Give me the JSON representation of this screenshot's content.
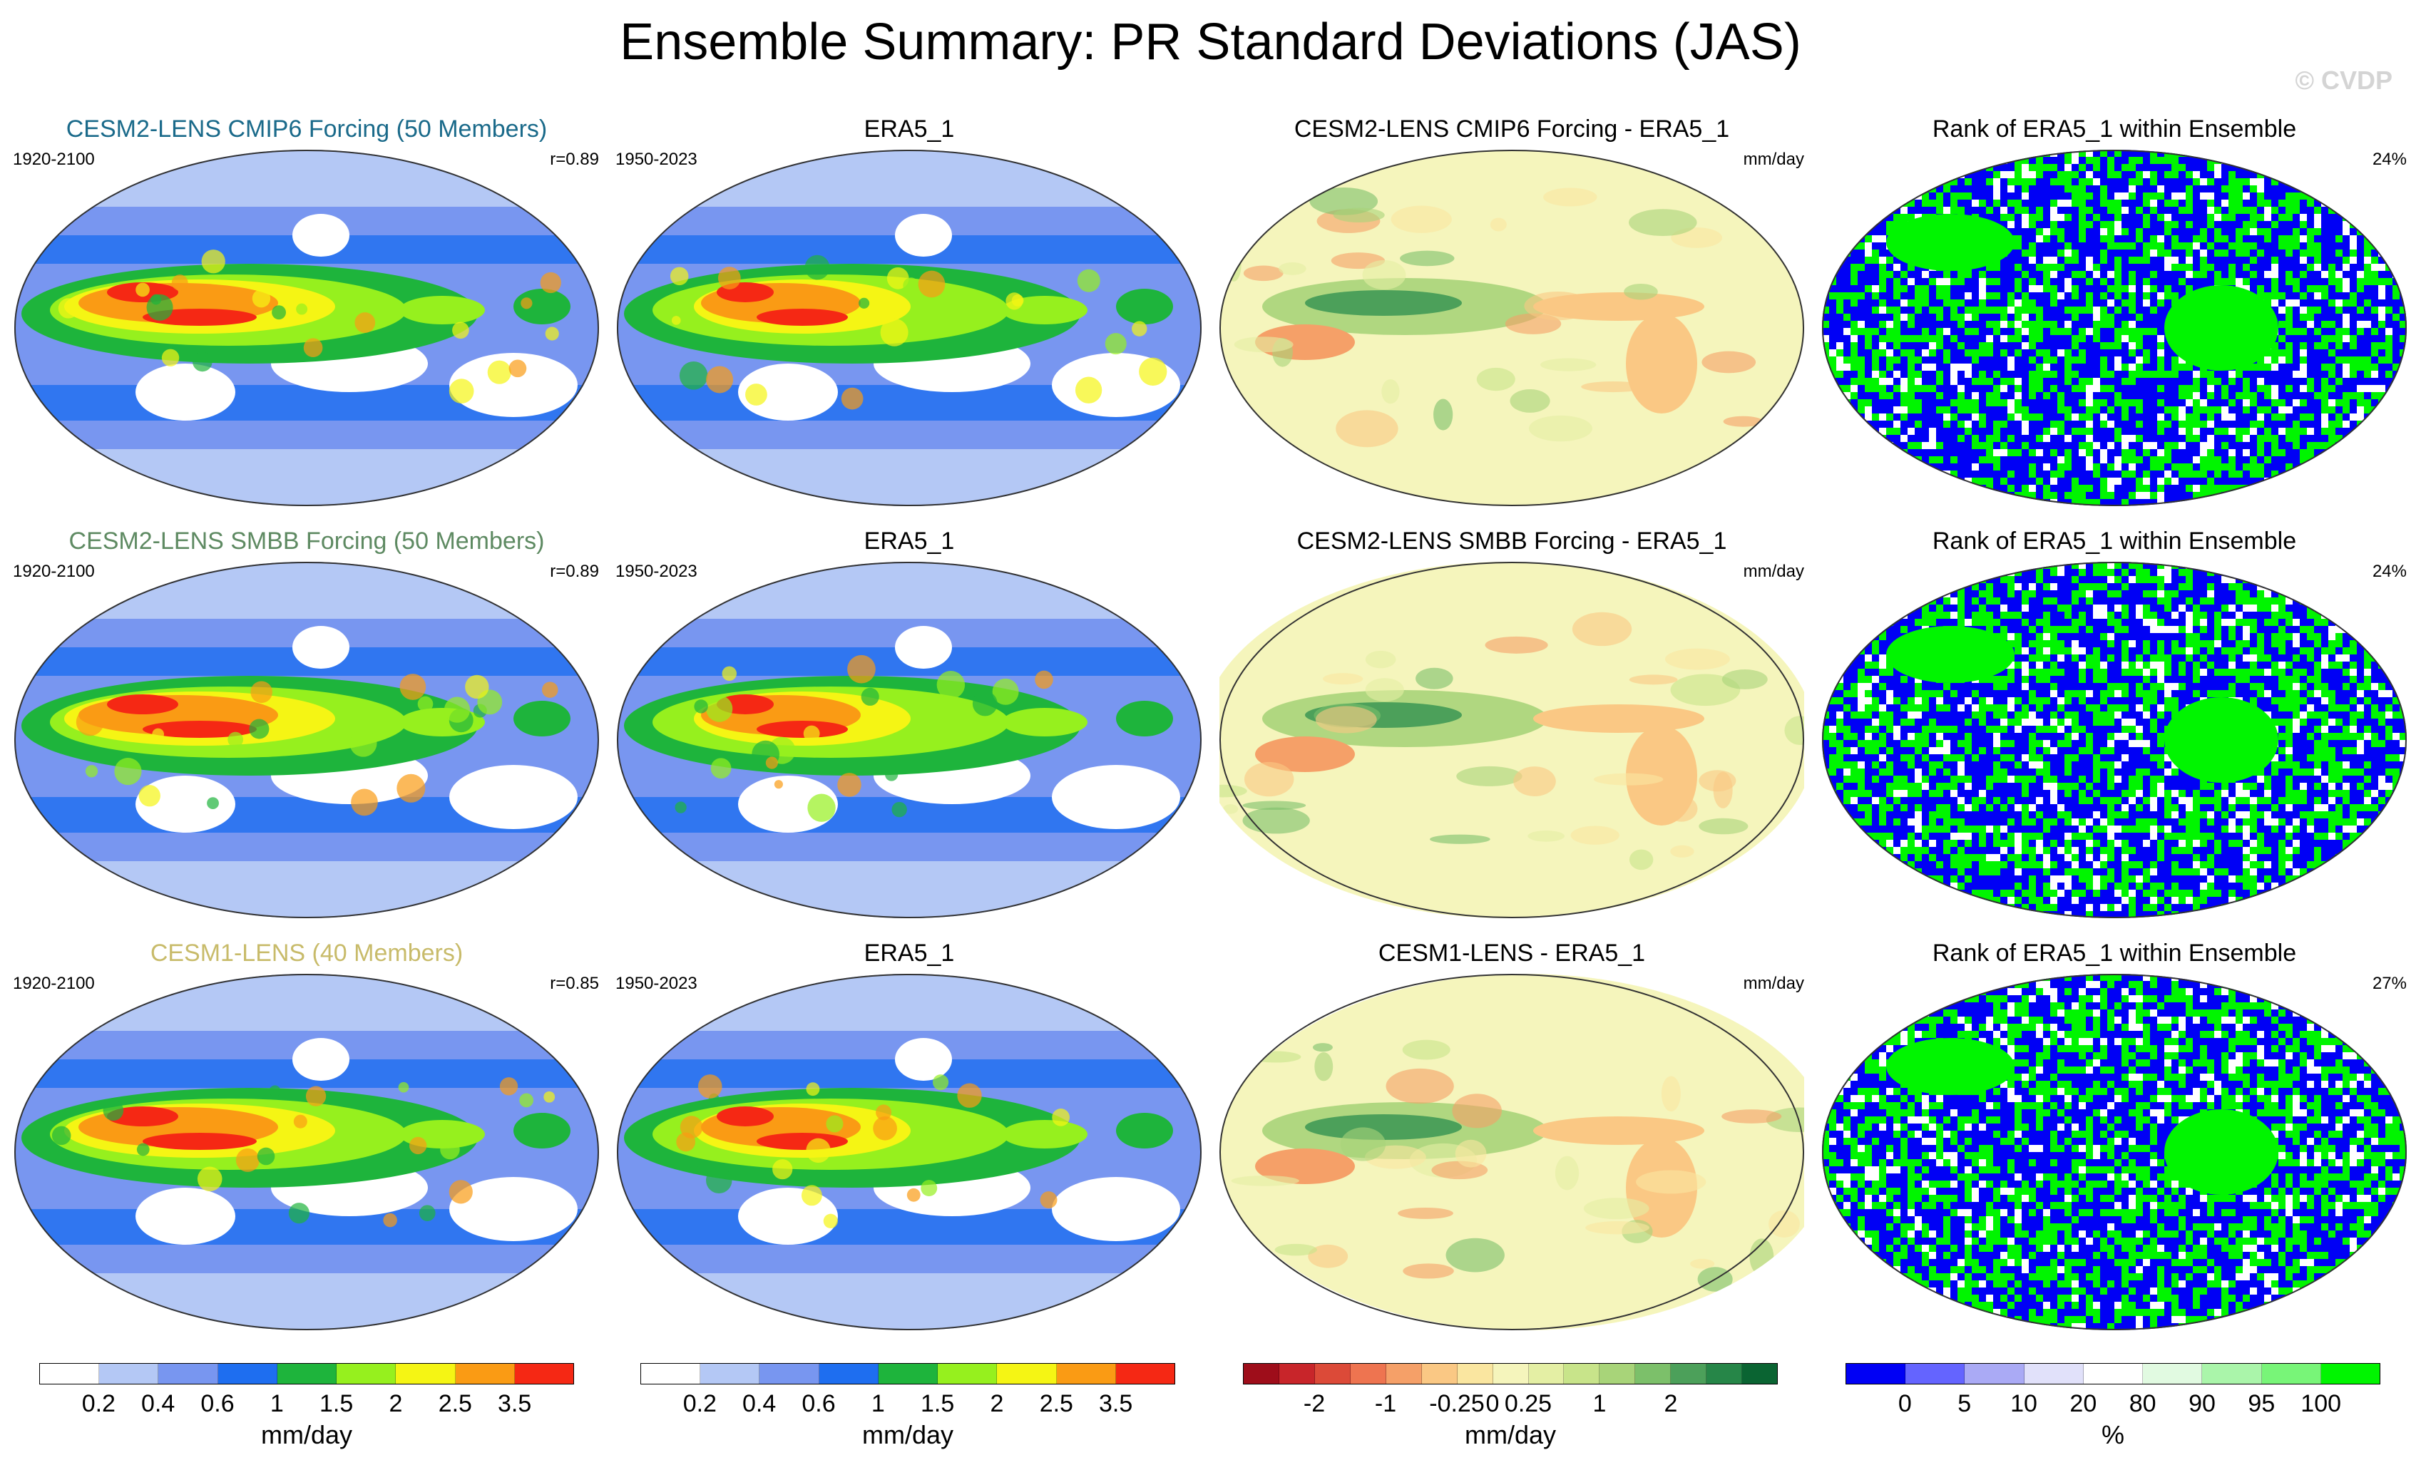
{
  "title": "Ensemble Summary: PR Standard Deviations (JAS)",
  "watermark": "© CVDP",
  "rows": [
    {
      "model_title": "CESM2-LENS CMIP6 Forcing (50 Members)",
      "model_title_color": "#1a6a8a",
      "model_period": "1920-2100",
      "r_value": "r=0.89",
      "obs_title": "ERA5_1",
      "obs_period": "1950-2023",
      "diff_title": "CESM2-LENS CMIP6 Forcing - ERA5_1",
      "diff_unit": "mm/day",
      "rank_title": "Rank of ERA5_1 within Ensemble",
      "rank_pct": "24%"
    },
    {
      "model_title": "CESM2-LENS SMBB Forcing (50 Members)",
      "model_title_color": "#5e8a62",
      "model_period": "1920-2100",
      "r_value": "r=0.89",
      "obs_title": "ERA5_1",
      "obs_period": "1950-2023",
      "diff_title": "CESM2-LENS SMBB Forcing - ERA5_1",
      "diff_unit": "mm/day",
      "rank_title": "Rank of ERA5_1 within Ensemble",
      "rank_pct": "24%"
    },
    {
      "model_title": "CESM1-LENS (40 Members)",
      "model_title_color": "#c8bb6a",
      "model_period": "1920-2100",
      "r_value": "r=0.85",
      "obs_title": "ERA5_1",
      "obs_period": "1950-2023",
      "diff_title": "CESM1-LENS - ERA5_1",
      "diff_unit": "mm/day",
      "rank_title": "Rank of ERA5_1 within Ensemble",
      "rank_pct": "27%"
    }
  ],
  "colorbars": [
    {
      "unit": "mm/day",
      "colors": [
        "#ffffff",
        "#b4c8f5",
        "#7896f0",
        "#1e6ef0",
        "#1eb43c",
        "#96f01e",
        "#f5f514",
        "#fa9b14",
        "#f52814"
      ],
      "ticks": [
        "0.2",
        "0.4",
        "0.6",
        "1",
        "1.5",
        "2",
        "2.5",
        "3.5"
      ]
    },
    {
      "unit": "mm/day",
      "colors": [
        "#ffffff",
        "#b4c8f5",
        "#7896f0",
        "#1e6ef0",
        "#1eb43c",
        "#96f01e",
        "#f5f514",
        "#fa9b14",
        "#f52814"
      ],
      "ticks": [
        "0.2",
        "0.4",
        "0.6",
        "1",
        "1.5",
        "2",
        "2.5",
        "3.5"
      ]
    },
    {
      "unit": "mm/day",
      "colors": [
        "#9e0d1a",
        "#c8252a",
        "#dc4a38",
        "#ee7450",
        "#f5a068",
        "#fac884",
        "#fae6a0",
        "#f5f5bc",
        "#e4efa4",
        "#c8e48a",
        "#a8d479",
        "#7cc06a",
        "#4ca05a",
        "#268648",
        "#0a6432"
      ],
      "ticks": [
        "-2",
        "-1",
        "-0.25",
        "0",
        "0.25",
        "1",
        "2"
      ]
    },
    {
      "unit": "%",
      "colors": [
        "#0000f5",
        "#6464ff",
        "#aaaaf5",
        "#e1e1fa",
        "#ffffff",
        "#e1fae1",
        "#aaf5aa",
        "#78f578",
        "#00f500"
      ],
      "ticks": [
        "0",
        "5",
        "10",
        "20",
        "80",
        "90",
        "95",
        "100"
      ]
    }
  ]
}
